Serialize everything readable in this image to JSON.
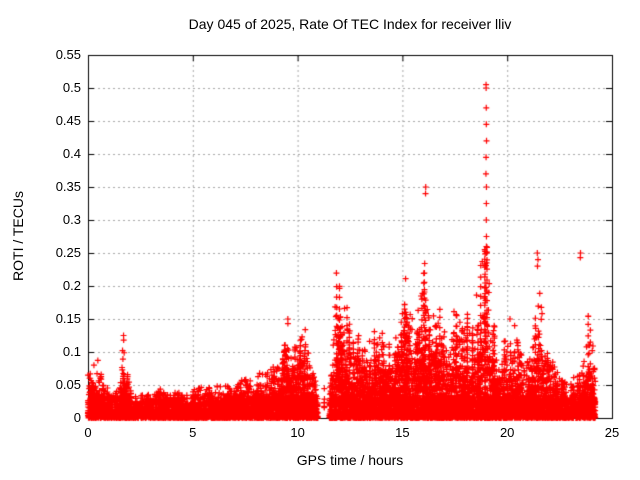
{
  "chart_data": {
    "type": "scatter",
    "title": "Day 045 of 2025, Rate Of TEC Index for receiver lliv",
    "xlabel": "GPS time / hours",
    "ylabel": "ROTI / TECUs",
    "xlim": [
      0,
      25
    ],
    "ylim": [
      0,
      0.55
    ],
    "x_tick_values": [
      0,
      5,
      10,
      15,
      20,
      25
    ],
    "x_tick_labels": [
      "0",
      "5",
      "10",
      "15",
      "20",
      "25"
    ],
    "y_tick_values": [
      0,
      0.05,
      0.1,
      0.15,
      0.2,
      0.25,
      0.3,
      0.35,
      0.4,
      0.45,
      0.5,
      0.55
    ],
    "y_tick_labels": [
      "0",
      "0.05",
      "0.1",
      "0.15",
      "0.2",
      "0.25",
      "0.3",
      "0.35",
      "0.4",
      "0.45",
      "0.5",
      "0.55"
    ],
    "grid": true,
    "legend": "none",
    "marker": "plus",
    "colors": {
      "points": "#ff0000",
      "grid": "#a9a9a9",
      "axis": "#000000",
      "text": "#000000",
      "background": "#ffffff"
    },
    "series": [
      {
        "name": "ROTI",
        "time_start": 0,
        "time_end": 24.2,
        "gaps": [
          [
            10.97,
            11.52
          ]
        ],
        "sparse_columns": [
          {
            "hour": 11.27,
            "max": 0.05
          }
        ],
        "base_band_max": 0.03,
        "envelope": [
          [
            0.0,
            0.07
          ],
          [
            0.2,
            0.08
          ],
          [
            0.4,
            0.1
          ],
          [
            0.6,
            0.08
          ],
          [
            0.8,
            0.05
          ],
          [
            1.1,
            0.04
          ],
          [
            1.5,
            0.05
          ],
          [
            1.7,
            0.125
          ],
          [
            1.85,
            0.09
          ],
          [
            2.0,
            0.045
          ],
          [
            2.3,
            0.035
          ],
          [
            2.7,
            0.04
          ],
          [
            3.1,
            0.035
          ],
          [
            3.5,
            0.045
          ],
          [
            3.9,
            0.035
          ],
          [
            4.3,
            0.045
          ],
          [
            4.7,
            0.04
          ],
          [
            5.1,
            0.045
          ],
          [
            5.5,
            0.055
          ],
          [
            5.9,
            0.045
          ],
          [
            6.3,
            0.05
          ],
          [
            6.6,
            0.055
          ],
          [
            6.9,
            0.05
          ],
          [
            7.2,
            0.06
          ],
          [
            7.5,
            0.065
          ],
          [
            7.8,
            0.055
          ],
          [
            8.1,
            0.07
          ],
          [
            8.4,
            0.065
          ],
          [
            8.7,
            0.075
          ],
          [
            9.0,
            0.085
          ],
          [
            9.3,
            0.1
          ],
          [
            9.55,
            0.15
          ],
          [
            9.75,
            0.12
          ],
          [
            10.0,
            0.11
          ],
          [
            10.35,
            0.14
          ],
          [
            10.6,
            0.09
          ],
          [
            10.9,
            0.05
          ],
          [
            11.6,
            0.08
          ],
          [
            11.8,
            0.25
          ],
          [
            11.95,
            0.22
          ],
          [
            12.1,
            0.16
          ],
          [
            12.3,
            0.2
          ],
          [
            12.55,
            0.13
          ],
          [
            12.8,
            0.11
          ],
          [
            13.05,
            0.15
          ],
          [
            13.3,
            0.12
          ],
          [
            13.6,
            0.14
          ],
          [
            13.85,
            0.185
          ],
          [
            14.05,
            0.16
          ],
          [
            14.3,
            0.12
          ],
          [
            14.55,
            0.11
          ],
          [
            14.8,
            0.14
          ],
          [
            15.0,
            0.18
          ],
          [
            15.2,
            0.24
          ],
          [
            15.4,
            0.16
          ],
          [
            15.6,
            0.14
          ],
          [
            15.8,
            0.22
          ],
          [
            16.0,
            0.25
          ],
          [
            16.15,
            0.22
          ],
          [
            16.35,
            0.19
          ],
          [
            16.6,
            0.16
          ],
          [
            16.9,
            0.17
          ],
          [
            17.1,
            0.12
          ],
          [
            17.35,
            0.15
          ],
          [
            17.6,
            0.19
          ],
          [
            17.85,
            0.14
          ],
          [
            18.05,
            0.17
          ],
          [
            18.3,
            0.13
          ],
          [
            18.55,
            0.21
          ],
          [
            18.8,
            0.25
          ],
          [
            19.0,
            0.3
          ],
          [
            19.2,
            0.18
          ],
          [
            19.45,
            0.13
          ],
          [
            19.7,
            0.11
          ],
          [
            19.95,
            0.14
          ],
          [
            20.3,
            0.17
          ],
          [
            20.55,
            0.12
          ],
          [
            20.8,
            0.08
          ],
          [
            21.1,
            0.1
          ],
          [
            21.45,
            0.22
          ],
          [
            21.7,
            0.15
          ],
          [
            22.0,
            0.1
          ],
          [
            22.3,
            0.08
          ],
          [
            22.6,
            0.06
          ],
          [
            23.0,
            0.05
          ],
          [
            23.3,
            0.07
          ],
          [
            23.6,
            0.08
          ],
          [
            23.85,
            0.16
          ],
          [
            24.05,
            0.13
          ],
          [
            24.2,
            0.08
          ]
        ],
        "spike_points": [
          {
            "hour": 19.0,
            "values": [
              0.505,
              0.5,
              0.47,
              0.445,
              0.42,
              0.395,
              0.37,
              0.35,
              0.325,
              0.3,
              0.275,
              0.25,
              0.235
            ]
          },
          {
            "hour": 16.1,
            "values": [
              0.35,
              0.34
            ]
          },
          {
            "hour": 21.45,
            "values": [
              0.25,
              0.24,
              0.23
            ]
          },
          {
            "hour": 23.5,
            "values": [
              0.25,
              0.243
            ]
          },
          {
            "hour": 1.7,
            "values": [
              0.125,
              0.118
            ]
          },
          {
            "hour": 9.55,
            "values": [
              0.15,
              0.143
            ]
          }
        ]
      }
    ]
  }
}
